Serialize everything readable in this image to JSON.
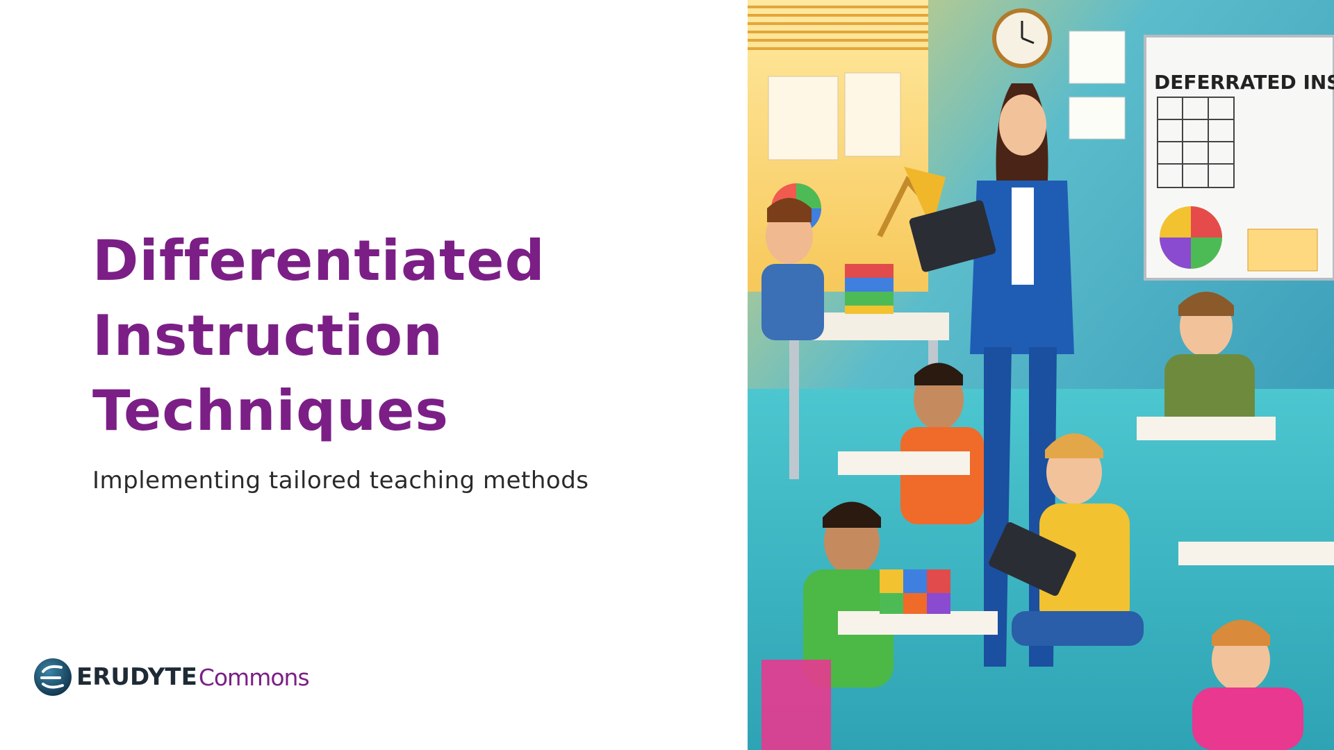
{
  "slide": {
    "title_lines": [
      "Differentiated",
      "Instruction",
      "Techniques"
    ],
    "subtitle": "Implementing tailored teaching methods"
  },
  "logo": {
    "brand_bold": "ERUDYTE",
    "brand_light": "Commons"
  },
  "illustration": {
    "subject": "classroom-illustration",
    "board_text": "DEFERRATED INSTR"
  },
  "colors": {
    "title": "#7b1f86",
    "subtitle": "#2a2a2a",
    "logo_dark": "#1e2a35",
    "logo_accent": "#7b1f86",
    "wall": "#3fb0c8",
    "floor": "#3ec3cf"
  }
}
